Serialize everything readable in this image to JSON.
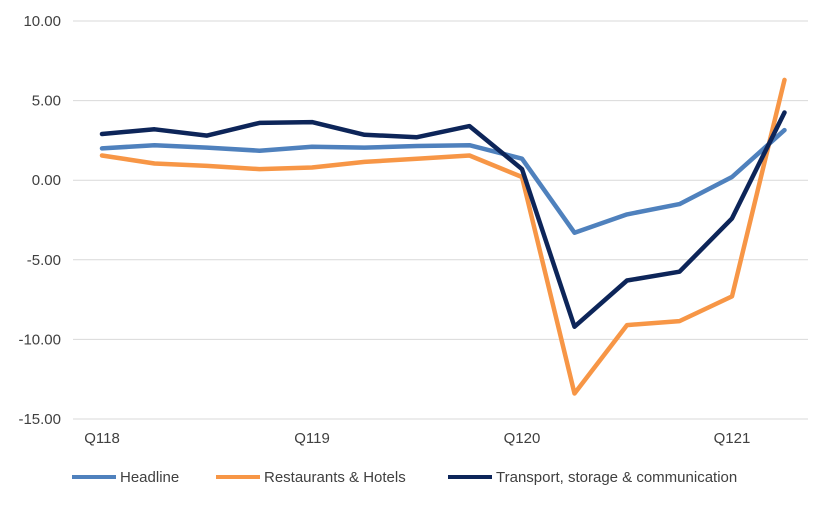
{
  "chart_data": {
    "type": "line",
    "title": "",
    "xlabel": "",
    "ylabel": "",
    "ylim": [
      -15,
      10
    ],
    "yticks": [
      "10.00",
      "5.00",
      "0.00",
      "-5.00",
      "-10.00",
      "-15.00"
    ],
    "xtick_labels": [
      "Q118",
      "Q119",
      "Q120",
      "Q121"
    ],
    "x": [
      "Q118",
      "Q218",
      "Q318",
      "Q418",
      "Q119",
      "Q219",
      "Q319",
      "Q419",
      "Q120",
      "Q220",
      "Q320",
      "Q420",
      "Q121",
      "Q221"
    ],
    "grid": "horizontal",
    "legend": "bottom",
    "series": [
      {
        "name": "Headline",
        "color": "#4F81BD",
        "values": [
          2.0,
          2.2,
          2.05,
          1.85,
          2.1,
          2.05,
          2.15,
          2.2,
          1.35,
          -3.3,
          -2.15,
          -1.5,
          0.2,
          3.15
        ]
      },
      {
        "name": "Restaurants & Hotels",
        "color": "#F79646",
        "values": [
          1.55,
          1.05,
          0.9,
          0.7,
          0.8,
          1.15,
          1.35,
          1.55,
          0.2,
          -13.4,
          -9.1,
          -8.85,
          -7.3,
          6.3
        ]
      },
      {
        "name": "Transport, storage & communication",
        "color": "#0D2559",
        "values": [
          2.9,
          3.2,
          2.8,
          3.6,
          3.65,
          2.85,
          2.7,
          3.4,
          0.7,
          -9.2,
          -6.3,
          -5.75,
          -2.4,
          4.25
        ]
      }
    ]
  }
}
